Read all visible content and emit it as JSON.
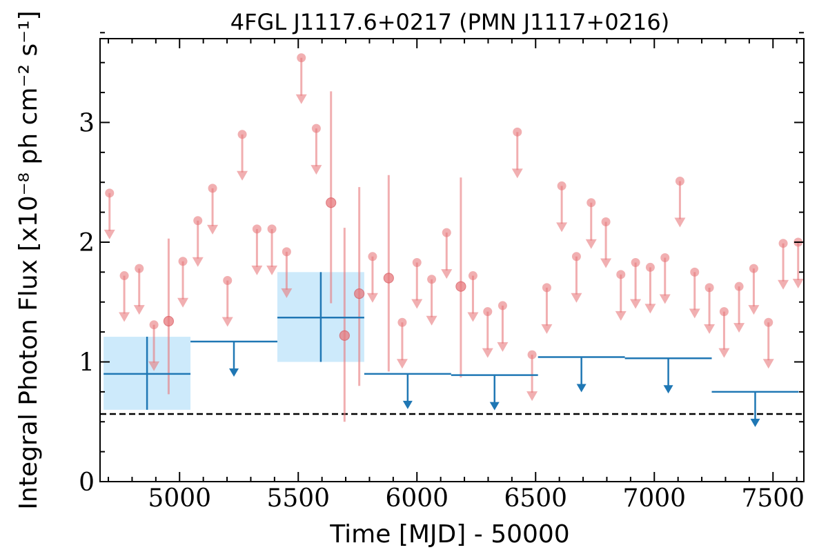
{
  "chart_data": {
    "type": "scatter",
    "title": "4FGL J1117.6+0217 (PMN J1117+0216)",
    "xlabel": "Time [MJD] - 50000",
    "ylabel": "Integral Photon Flux [x10⁻⁸ ph cm⁻² s⁻¹]",
    "xlim": [
      4665,
      7630
    ],
    "ylim": [
      0,
      3.7
    ],
    "x_ticks": [
      5000,
      5500,
      6000,
      6500,
      7000,
      7500
    ],
    "x_tick_labels": [
      "5000",
      "5500",
      "6000",
      "6500",
      "7000",
      "7500"
    ],
    "y_ticks": [
      0,
      1,
      2,
      3
    ],
    "y_tick_labels": [
      "0",
      "1",
      "2",
      "3"
    ],
    "grid": false,
    "reference_level": 0.565,
    "colors": {
      "short_bins": "#e8797d",
      "long_bins": "#1f77b4",
      "long_bins_error_box": "#cdeafb",
      "reference_line": "#000000"
    },
    "series": [
      {
        "type": "upper_limits",
        "x": [
          4705,
          4767,
          4830,
          4892,
          5014,
          5077,
          5139,
          5202,
          5264,
          5326,
          5389,
          5451,
          5513,
          5576,
          5813,
          5938,
          6000,
          6062,
          6125,
          6236,
          6298,
          6361,
          6423,
          6485,
          6547,
          6610,
          6672,
          6734,
          6796,
          6859,
          6921,
          6983,
          7045,
          7108,
          7170,
          7232,
          7294,
          7357,
          7419,
          7481,
          7543,
          7606
        ],
        "y": [
          2.41,
          1.72,
          1.78,
          1.31,
          1.84,
          2.18,
          2.45,
          1.68,
          2.9,
          2.11,
          2.11,
          1.92,
          3.54,
          2.95,
          1.88,
          1.33,
          1.83,
          1.69,
          2.08,
          1.72,
          1.42,
          1.47,
          2.92,
          1.06,
          1.62,
          2.47,
          1.88,
          2.33,
          2.17,
          1.73,
          1.83,
          1.79,
          1.87,
          2.51,
          1.75,
          1.62,
          1.42,
          1.63,
          1.78,
          1.33,
          1.99,
          2.0
        ]
      },
      {
        "type": "detections",
        "x": [
          4954,
          5638,
          5695,
          5757,
          5881,
          6185
        ],
        "y": [
          1.34,
          2.33,
          1.22,
          1.57,
          1.7,
          1.63
        ],
        "y_low": [
          0.73,
          1.49,
          0.5,
          0.8,
          0.92,
          0.87
        ],
        "y_high": [
          2.03,
          3.26,
          2.12,
          2.46,
          2.56,
          2.54
        ]
      },
      {
        "type": "detections",
        "x": [
          4863,
          5595
        ],
        "y": [
          0.9,
          1.37
        ],
        "x_low": [
          4680,
          5412
        ],
        "x_high": [
          5046,
          5778
        ],
        "y_low": [
          0.6,
          1.0
        ],
        "y_high": [
          1.21,
          1.75
        ]
      },
      {
        "type": "upper_limits",
        "x_low": [
          5046,
          5778,
          6144,
          6510,
          6876,
          7242
        ],
        "x_high": [
          5412,
          6144,
          6510,
          6876,
          7242,
          7608
        ],
        "y": [
          1.17,
          0.9,
          0.89,
          1.04,
          1.03,
          0.75
        ]
      }
    ]
  }
}
